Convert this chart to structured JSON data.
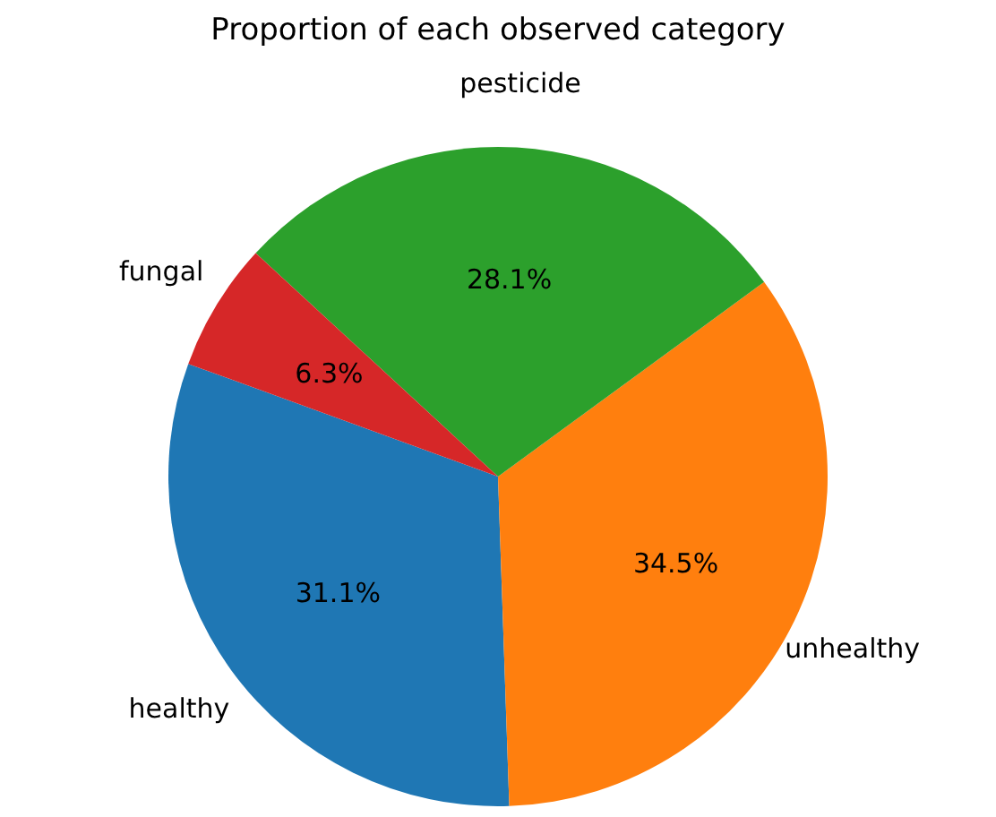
{
  "chart_data": {
    "type": "pie",
    "title": "Proportion of each observed category",
    "categories": [
      "healthy",
      "unhealthy",
      "pesticide",
      "fungal"
    ],
    "values": [
      31.1,
      34.5,
      28.1,
      6.3
    ],
    "colors": [
      "#1f77b4",
      "#ff7f0e",
      "#2ca02c",
      "#d62728"
    ],
    "value_labels": [
      "31.1%",
      "34.5%",
      "28.1%",
      "6.3%"
    ],
    "legend": false
  }
}
